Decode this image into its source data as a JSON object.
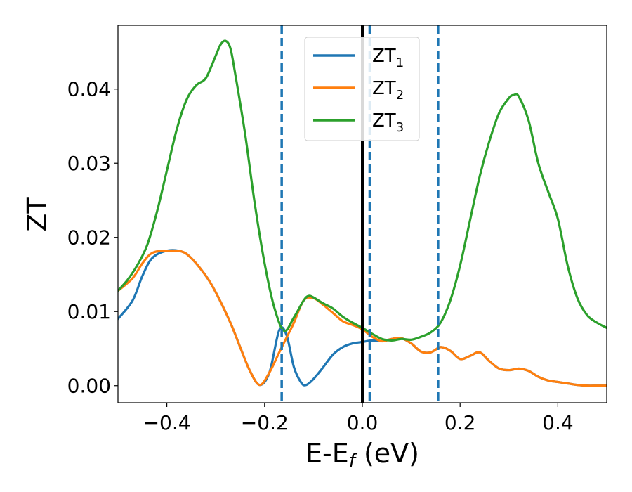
{
  "chart_data": {
    "type": "line",
    "xlabel": {
      "main": "E-E",
      "sub": "f",
      "rest": " (eV)"
    },
    "ylabel": "ZT",
    "xlim": [
      -0.5,
      0.5
    ],
    "ylim": [
      -0.0023,
      0.0486
    ],
    "xticks": [
      -0.4,
      -0.2,
      0.0,
      0.2,
      0.4
    ],
    "xtick_labels": [
      "−0.4",
      "−0.2",
      "0.0",
      "0.2",
      "0.4"
    ],
    "yticks": [
      0.0,
      0.01,
      0.02,
      0.03,
      0.04
    ],
    "ytick_labels": [
      "0.00",
      "0.01",
      "0.02",
      "0.03",
      "0.04"
    ],
    "legend_position": "top-center",
    "grid": false,
    "vlines": [
      {
        "x": -0.165,
        "style": "dashed",
        "color": "#1f77b4"
      },
      {
        "x": 0.0,
        "style": "solid",
        "color": "#000000"
      },
      {
        "x": 0.015,
        "style": "dashed",
        "color": "#1f77b4"
      },
      {
        "x": 0.155,
        "style": "dashed",
        "color": "#1f77b4"
      }
    ],
    "series": [
      {
        "name": "ZT",
        "sub": "1",
        "color": "#1f77b4",
        "x": [
          -0.5,
          -0.47,
          -0.45,
          -0.43,
          -0.4,
          -0.37,
          -0.35,
          -0.32,
          -0.3,
          -0.27,
          -0.25,
          -0.23,
          -0.21,
          -0.19,
          -0.17,
          -0.155,
          -0.14,
          -0.125,
          -0.115,
          -0.1,
          -0.08,
          -0.06,
          -0.04,
          -0.02,
          0.0,
          0.02,
          0.04,
          0.06,
          0.08,
          0.1,
          0.12,
          0.14,
          0.16,
          0.18,
          0.2,
          0.22,
          0.24,
          0.26,
          0.28,
          0.3,
          0.32,
          0.34,
          0.36,
          0.38,
          0.4,
          0.42,
          0.44,
          0.46,
          0.48,
          0.5
        ],
        "y": [
          0.009,
          0.0115,
          0.0148,
          0.0172,
          0.0182,
          0.0181,
          0.0172,
          0.0148,
          0.0126,
          0.0085,
          0.0052,
          0.002,
          0.0001,
          0.0018,
          0.0075,
          0.0068,
          0.0025,
          0.0004,
          0.0001,
          0.0009,
          0.0025,
          0.0042,
          0.0052,
          0.0057,
          0.0059,
          0.0061,
          0.006,
          0.0063,
          0.0064,
          0.0057,
          0.0046,
          0.0045,
          0.0052,
          0.0047,
          0.0036,
          0.004,
          0.0045,
          0.0033,
          0.0023,
          0.0021,
          0.0023,
          0.002,
          0.0012,
          0.0007,
          0.0005,
          0.0003,
          0.0001,
          0.0,
          0.0,
          0.0
        ]
      },
      {
        "name": "ZT",
        "sub": "2",
        "color": "#ff7f0e",
        "x": [
          -0.5,
          -0.47,
          -0.45,
          -0.43,
          -0.4,
          -0.37,
          -0.35,
          -0.32,
          -0.3,
          -0.27,
          -0.25,
          -0.23,
          -0.21,
          -0.19,
          -0.17,
          -0.155,
          -0.14,
          -0.12,
          -0.1,
          -0.08,
          -0.06,
          -0.04,
          -0.02,
          0.0,
          0.02,
          0.04,
          0.06,
          0.08,
          0.1,
          0.12,
          0.14,
          0.16,
          0.18,
          0.2,
          0.22,
          0.24,
          0.26,
          0.28,
          0.3,
          0.32,
          0.34,
          0.36,
          0.38,
          0.4,
          0.42,
          0.44,
          0.46,
          0.48,
          0.5
        ],
        "y": [
          0.0128,
          0.0145,
          0.0165,
          0.0179,
          0.0182,
          0.0181,
          0.0172,
          0.0148,
          0.0126,
          0.0085,
          0.0052,
          0.002,
          0.0001,
          0.0018,
          0.0045,
          0.0065,
          0.0085,
          0.0115,
          0.0118,
          0.0109,
          0.0098,
          0.0087,
          0.0082,
          0.0076,
          0.0066,
          0.006,
          0.0063,
          0.0064,
          0.0057,
          0.0046,
          0.0045,
          0.0052,
          0.0047,
          0.0036,
          0.004,
          0.0045,
          0.0033,
          0.0023,
          0.0021,
          0.0023,
          0.002,
          0.0012,
          0.0007,
          0.0005,
          0.0003,
          0.0001,
          0.0,
          0.0,
          0.0
        ]
      },
      {
        "name": "ZT",
        "sub": "3",
        "color": "#2ca02c",
        "x": [
          -0.5,
          -0.48,
          -0.46,
          -0.44,
          -0.42,
          -0.4,
          -0.38,
          -0.36,
          -0.34,
          -0.32,
          -0.3,
          -0.29,
          -0.28,
          -0.27,
          -0.26,
          -0.24,
          -0.22,
          -0.2,
          -0.18,
          -0.16,
          -0.14,
          -0.12,
          -0.11,
          -0.1,
          -0.08,
          -0.06,
          -0.04,
          -0.02,
          0.0,
          0.02,
          0.04,
          0.06,
          0.08,
          0.1,
          0.12,
          0.14,
          0.16,
          0.18,
          0.2,
          0.22,
          0.24,
          0.26,
          0.28,
          0.3,
          0.31,
          0.32,
          0.34,
          0.36,
          0.38,
          0.4,
          0.42,
          0.44,
          0.46,
          0.48,
          0.5
        ],
        "y": [
          0.0128,
          0.0143,
          0.0163,
          0.019,
          0.0235,
          0.029,
          0.0345,
          0.0385,
          0.0405,
          0.0415,
          0.0445,
          0.046,
          0.0465,
          0.0455,
          0.042,
          0.034,
          0.0245,
          0.0165,
          0.0105,
          0.0074,
          0.0092,
          0.0115,
          0.0121,
          0.0119,
          0.0111,
          0.0104,
          0.0093,
          0.0085,
          0.0078,
          0.007,
          0.0063,
          0.0061,
          0.0063,
          0.0062,
          0.0066,
          0.0072,
          0.0085,
          0.0115,
          0.0162,
          0.0222,
          0.0282,
          0.033,
          0.0368,
          0.0388,
          0.0392,
          0.039,
          0.0358,
          0.03,
          0.0262,
          0.0225,
          0.0162,
          0.0118,
          0.0095,
          0.0085,
          0.0078
        ]
      }
    ]
  }
}
